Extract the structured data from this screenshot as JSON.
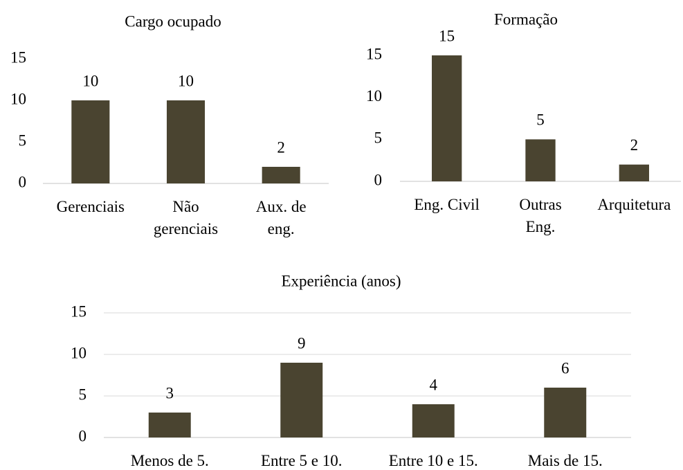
{
  "chart_data": [
    {
      "type": "bar",
      "title": "Cargo ocupado",
      "categories": [
        "Gerenciais",
        "Não\ngerenciais",
        "Aux. de\neng."
      ],
      "values": [
        10,
        10,
        2
      ],
      "color": "#4a4430",
      "ylim": [
        0,
        15
      ],
      "yticks": [
        0,
        5,
        10,
        15
      ],
      "grid": false
    },
    {
      "type": "bar",
      "title": "Formação",
      "categories": [
        "Eng. Civil",
        "Outras\nEng.",
        "Arquitetura"
      ],
      "values": [
        15,
        5,
        2
      ],
      "color": "#4a4430",
      "ylim": [
        0,
        15
      ],
      "yticks": [
        0,
        5,
        10,
        15
      ],
      "grid": false
    },
    {
      "type": "bar",
      "title": "Experiência (anos)",
      "categories": [
        "Menos de 5.",
        "Entre 5 e 10.",
        "Entre 10 e 15.",
        "Mais de 15."
      ],
      "values": [
        3,
        9,
        4,
        6
      ],
      "color": "#4a4430",
      "ylim": [
        0,
        15
      ],
      "yticks": [
        0,
        5,
        10,
        15
      ],
      "grid": true
    }
  ]
}
